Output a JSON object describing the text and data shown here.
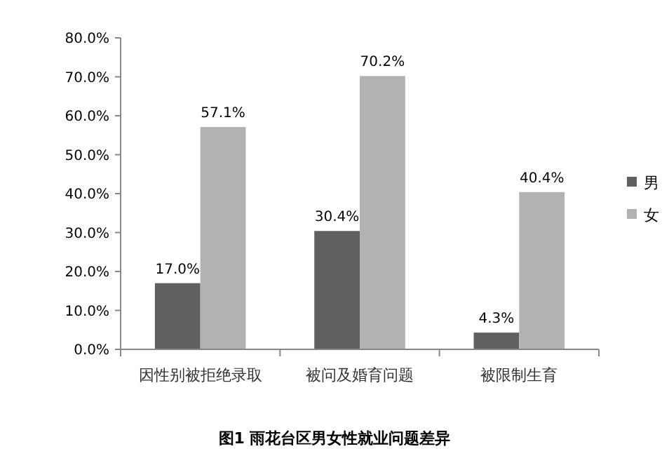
{
  "chart_data": {
    "type": "bar",
    "title": "图1 雨花台区男女性就业问题差异",
    "categories": [
      "因性别被拒绝录取",
      "被问及婚育问题",
      "被限制生育"
    ],
    "series": [
      {
        "name": "男",
        "color": "#606060",
        "values": [
          17.0,
          30.4,
          4.3
        ]
      },
      {
        "name": "女",
        "color": "#b2b2b2",
        "values": [
          57.1,
          70.2,
          40.4
        ]
      }
    ],
    "ylim": [
      0,
      80
    ],
    "yticks": [
      {
        "value": 0,
        "label": "0.0%"
      },
      {
        "value": 10,
        "label": "10.0%"
      },
      {
        "value": 20,
        "label": "20.0%"
      },
      {
        "value": 30,
        "label": "30.0%"
      },
      {
        "value": 40,
        "label": "40.0%"
      },
      {
        "value": 50,
        "label": "50.0%"
      },
      {
        "value": 60,
        "label": "60.0%"
      },
      {
        "value": 70,
        "label": "70.0%"
      },
      {
        "value": 80,
        "label": "80.0%"
      }
    ],
    "value_labels": [
      [
        "17.0%",
        "30.4%",
        "4.3%"
      ],
      [
        "57.1%",
        "70.2%",
        "40.4%"
      ]
    ],
    "legend": "right",
    "grid": false
  }
}
